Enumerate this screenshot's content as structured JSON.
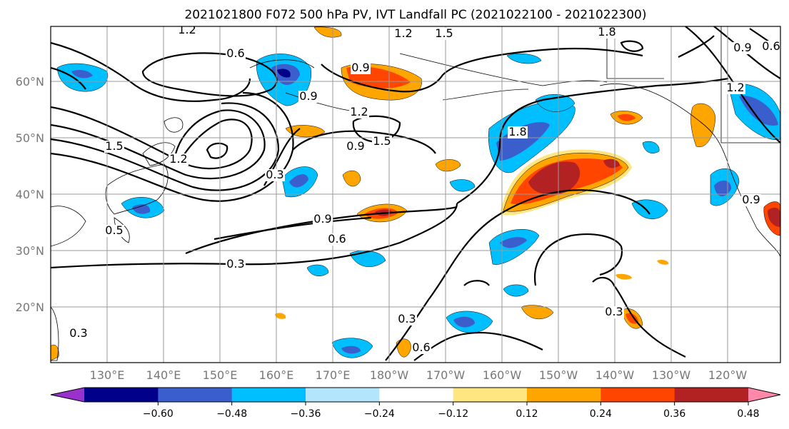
{
  "title": "2021021800 F072 500 hPa PV, IVT Landfall PC (2021022100 - 2021022300)",
  "map": {
    "lon_labels": [
      "130°E",
      "140°E",
      "150°E",
      "160°E",
      "170°E",
      "180°W",
      "170°W",
      "160°W",
      "150°W",
      "140°W",
      "130°W",
      "120°W"
    ],
    "lat_labels": [
      "60°N",
      "50°N",
      "40°N",
      "30°N",
      "20°N"
    ],
    "contour_labels": [
      "1.2",
      "1.5",
      "1.2",
      "1.8",
      "0.6",
      "0.9",
      "0.9",
      "1.2",
      "1.5",
      "0.9",
      "0.3",
      "1.5",
      "1.2",
      "1.8",
      "0.9",
      "0.6",
      "0.3",
      "0.3",
      "0.6",
      "0.3",
      "0.3",
      "0.9",
      "1.2",
      "0.6",
      "0.5",
      "0.9"
    ]
  },
  "colorbar": {
    "colors": [
      "#9932cc",
      "#00008b",
      "#3a5fcd",
      "#00bfff",
      "#b3e5fc",
      "#ffffff",
      "#ffe680",
      "#ffa500",
      "#ff4500",
      "#b22222",
      "#ff88aa"
    ],
    "tick_labels": [
      "−0.60",
      "−0.48",
      "−0.36",
      "−0.24",
      "−0.12",
      "0.12",
      "0.24",
      "0.36",
      "0.48",
      "0.60"
    ]
  }
}
